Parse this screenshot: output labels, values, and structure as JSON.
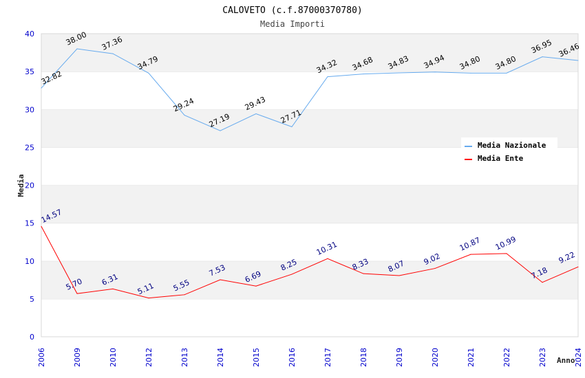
{
  "chart_data": {
    "type": "line",
    "title": "CALOVETO (c.f.87000370780)",
    "subtitle": "Media Importi",
    "xlabel": "Anno",
    "ylabel": "Media",
    "ylim": [
      0,
      40
    ],
    "yticks": [
      0,
      5,
      10,
      15,
      20,
      25,
      30,
      35,
      40
    ],
    "categories": [
      "2006",
      "2009",
      "2010",
      "2012",
      "2013",
      "2014",
      "2015",
      "2016",
      "2017",
      "2018",
      "2019",
      "2020",
      "2021",
      "2022",
      "2023",
      "2024"
    ],
    "legend_position": "top-right",
    "series": [
      {
        "name": "Media Nazionale",
        "color": "#66aaee",
        "label_color": "#000000",
        "values": [
          32.82,
          38.0,
          37.36,
          34.79,
          29.24,
          27.19,
          29.43,
          27.71,
          34.32,
          34.68,
          34.83,
          34.94,
          34.8,
          34.8,
          36.95,
          36.46
        ],
        "labels": [
          "32.82",
          "38.00",
          "37.36",
          "34.79",
          "29.24",
          "27.19",
          "29.43",
          "27.71",
          "34.32",
          "34.68",
          "34.83",
          "34.94",
          "34.80",
          "34.80",
          "36.95",
          "36.46"
        ]
      },
      {
        "name": "Media Ente",
        "color": "#ff0000",
        "label_color": "#000080",
        "values": [
          14.57,
          5.7,
          6.31,
          5.11,
          5.55,
          7.53,
          6.69,
          8.25,
          10.31,
          8.33,
          8.07,
          9.02,
          10.87,
          10.99,
          7.18,
          9.22
        ],
        "labels": [
          "14.57",
          "5.70",
          "6.31",
          "5.11",
          "5.55",
          "7.53",
          "6.69",
          "8.25",
          "10.31",
          "8.33",
          "8.07",
          "9.02",
          "10.87",
          "10.99",
          "7.18",
          "9.22"
        ]
      }
    ]
  }
}
